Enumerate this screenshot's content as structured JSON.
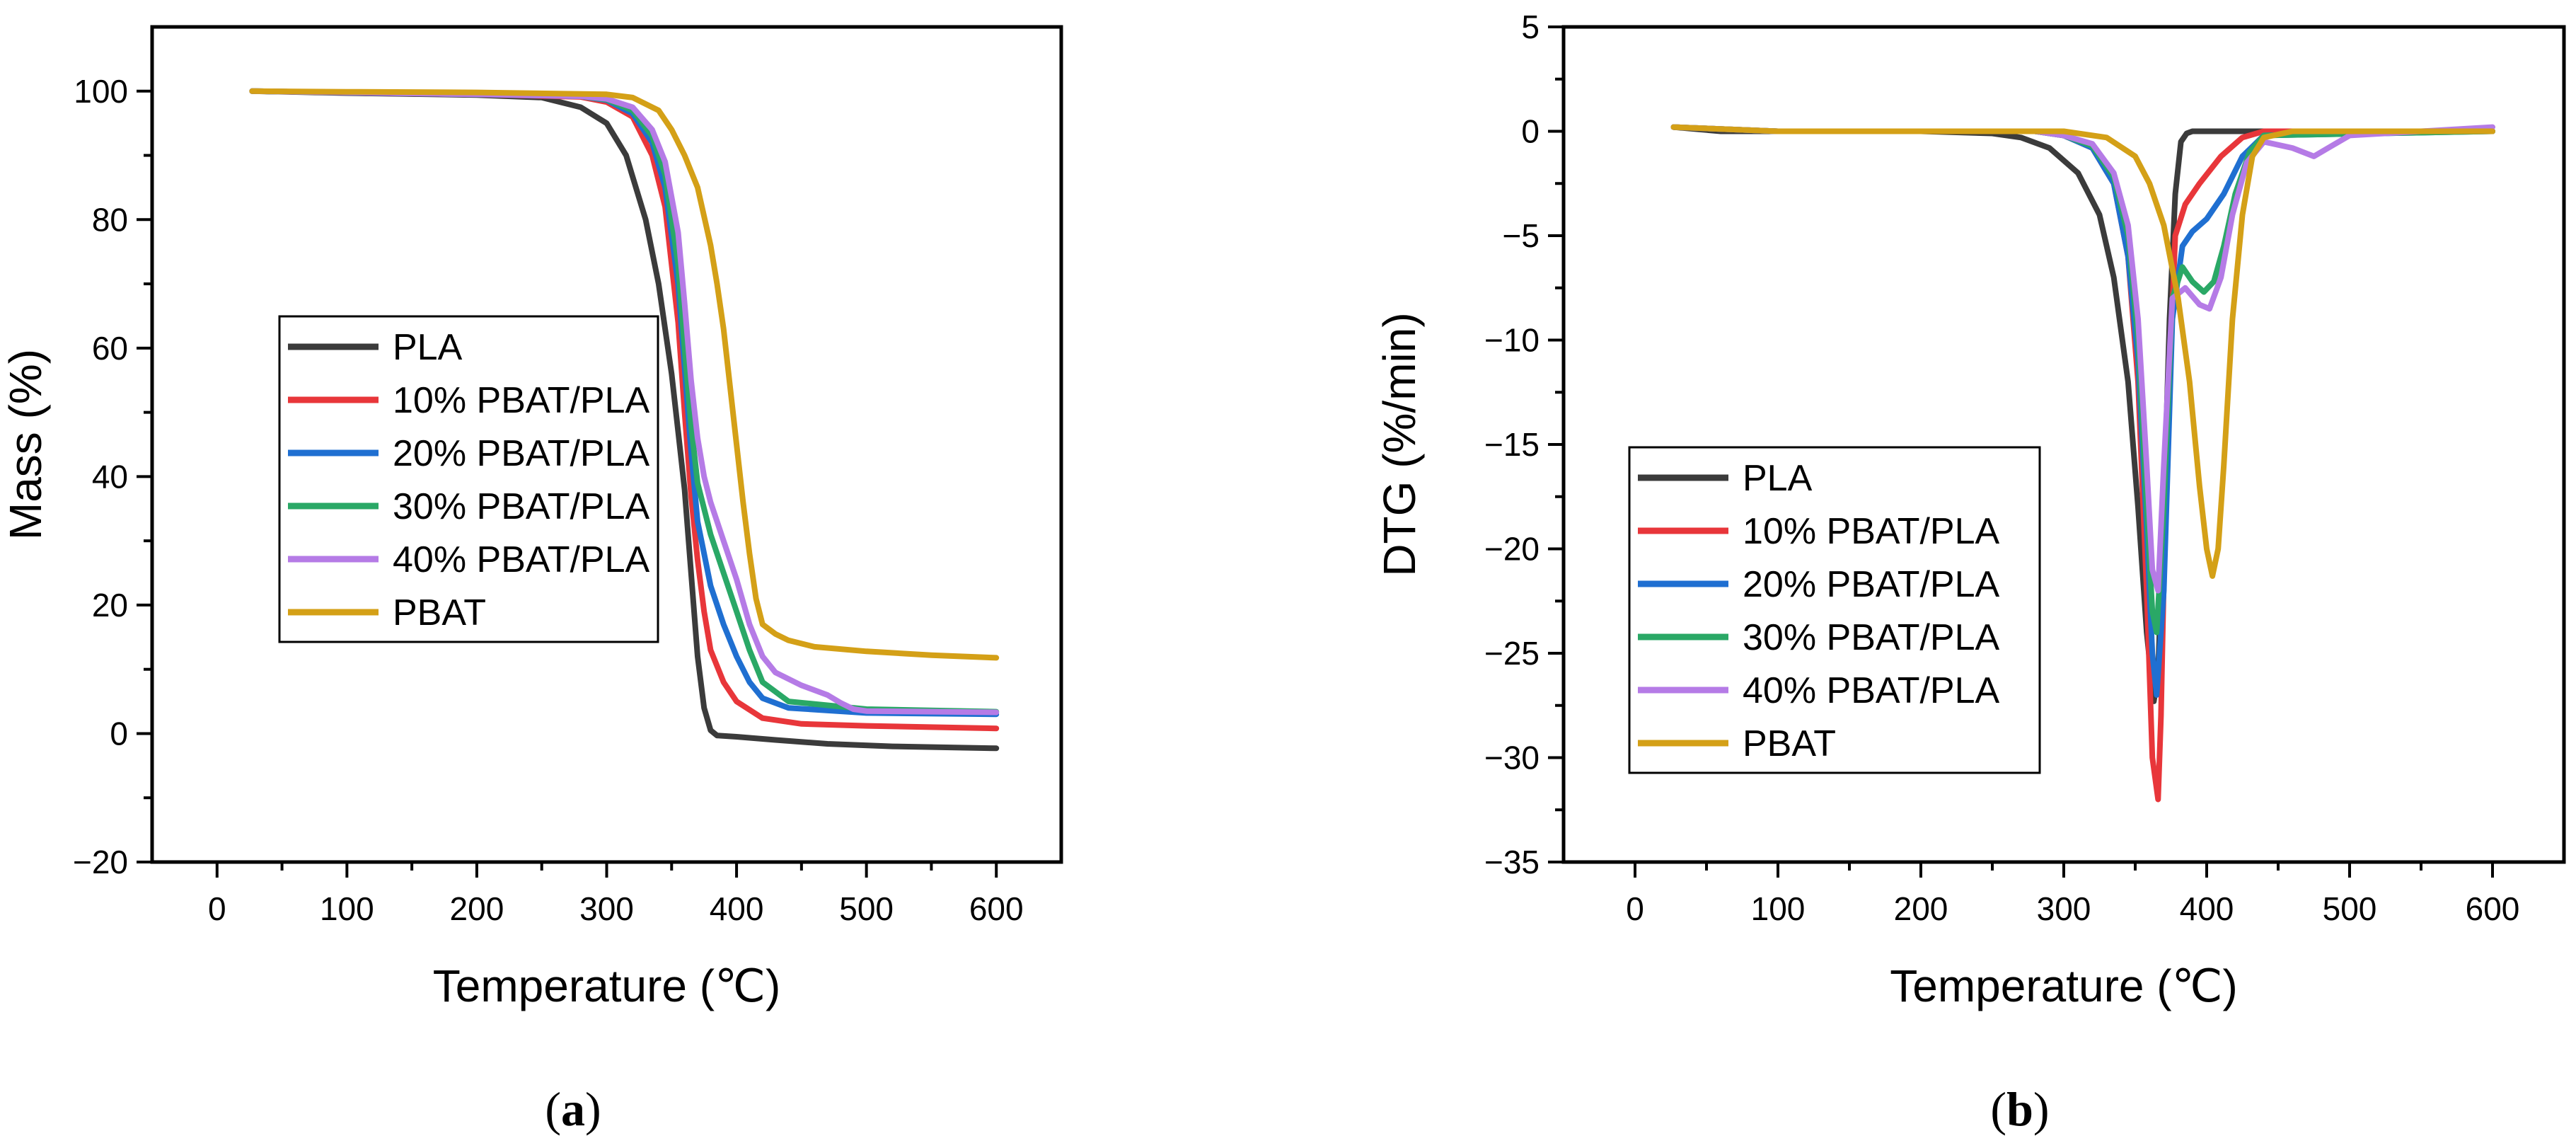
{
  "chart_data": [
    {
      "type": "line",
      "panel_label": "a",
      "xlabel": "Temperature (℃)",
      "ylabel": "Mass (%)",
      "xlim": [
        -50,
        650
      ],
      "ylim": [
        -20,
        110
      ],
      "xticks": [
        0,
        100,
        200,
        300,
        400,
        500,
        600
      ],
      "yticks": [
        -20,
        0,
        20,
        40,
        60,
        80,
        100
      ],
      "grid": false,
      "legend_position": "center-left",
      "series": [
        {
          "name": "PLA",
          "color": "#3b3b3b",
          "x": [
            27,
            100,
            200,
            250,
            280,
            300,
            315,
            330,
            340,
            350,
            355,
            360,
            365,
            370,
            375,
            380,
            385,
            400,
            430,
            470,
            520,
            600
          ],
          "y": [
            100,
            99.7,
            99.4,
            99,
            97.5,
            95,
            90,
            80,
            70,
            56,
            47,
            38,
            25,
            12,
            4,
            0.5,
            -0.3,
            -0.5,
            -1,
            -1.6,
            -2,
            -2.3
          ]
        },
        {
          "name": "10% PBAT/PLA",
          "color": "#e8363a",
          "x": [
            27,
            100,
            200,
            280,
            300,
            320,
            335,
            345,
            355,
            360,
            365,
            370,
            375,
            380,
            390,
            400,
            420,
            450,
            500,
            600
          ],
          "y": [
            100,
            99.8,
            99.5,
            99.1,
            98.3,
            96,
            90,
            82,
            64,
            50,
            37,
            27,
            19,
            13,
            8,
            5,
            2.4,
            1.5,
            1.2,
            0.8
          ]
        },
        {
          "name": "20% PBAT/PLA",
          "color": "#1f6fd1",
          "x": [
            27,
            100,
            200,
            280,
            300,
            320,
            335,
            345,
            355,
            360,
            365,
            370,
            380,
            390,
            400,
            410,
            420,
            440,
            500,
            600
          ],
          "y": [
            100,
            99.8,
            99.5,
            99.2,
            98.6,
            96.5,
            92,
            85,
            70,
            57,
            44,
            33,
            23,
            17,
            12,
            8,
            5.5,
            4,
            3.2,
            3
          ]
        },
        {
          "name": "30% PBAT/PLA",
          "color": "#2aa866",
          "x": [
            27,
            100,
            200,
            280,
            300,
            320,
            335,
            345,
            355,
            360,
            365,
            370,
            380,
            390,
            400,
            410,
            420,
            440,
            500,
            600
          ],
          "y": [
            100,
            99.8,
            99.5,
            99.2,
            98.7,
            97,
            93,
            87,
            73,
            60,
            48,
            39,
            31,
            25,
            19,
            13,
            8,
            5,
            3.8,
            3.4
          ]
        },
        {
          "name": "40% PBAT/PLA",
          "color": "#b57be6",
          "x": [
            27,
            100,
            200,
            280,
            300,
            320,
            335,
            345,
            355,
            360,
            365,
            370,
            375,
            380,
            390,
            400,
            410,
            420,
            430,
            450,
            470,
            480,
            490,
            500,
            600
          ],
          "y": [
            100,
            99.8,
            99.5,
            99.2,
            98.8,
            97.5,
            94,
            89,
            78,
            67,
            55,
            46,
            40,
            36,
            30,
            24,
            17,
            12,
            9.5,
            7.5,
            6,
            4.8,
            3.8,
            3.5,
            3.3
          ]
        },
        {
          "name": "PBAT",
          "color": "#d4a017",
          "x": [
            27,
            100,
            200,
            300,
            320,
            340,
            350,
            360,
            370,
            380,
            385,
            390,
            395,
            400,
            405,
            410,
            415,
            420,
            430,
            440,
            460,
            500,
            550,
            600
          ],
          "y": [
            100,
            99.9,
            99.8,
            99.5,
            99,
            97,
            94,
            90,
            85,
            76,
            70,
            63,
            54,
            45,
            36,
            28,
            21,
            17,
            15.5,
            14.5,
            13.5,
            12.8,
            12.2,
            11.8
          ]
        }
      ]
    },
    {
      "type": "line",
      "panel_label": "b",
      "xlabel": "Temperature (℃)",
      "ylabel": "DTG (%/min)",
      "xlim": [
        -50,
        650
      ],
      "ylim": [
        -35,
        5
      ],
      "xticks": [
        0,
        100,
        200,
        300,
        400,
        500,
        600
      ],
      "yticks": [
        -35,
        -30,
        -25,
        -20,
        -15,
        -10,
        -5,
        0,
        5
      ],
      "grid": false,
      "legend_position": "center-left",
      "series": [
        {
          "name": "PLA",
          "color": "#3b3b3b",
          "x": [
            27,
            60,
            100,
            200,
            250,
            270,
            290,
            310,
            325,
            335,
            345,
            352,
            358,
            363,
            366,
            370,
            374,
            378,
            382,
            386,
            390,
            420,
            600
          ],
          "y": [
            0.2,
            0,
            0,
            0,
            -0.1,
            -0.3,
            -0.8,
            -2,
            -4,
            -7,
            -12,
            -18,
            -24,
            -27.3,
            -26,
            -18,
            -9,
            -3,
            -0.5,
            -0.1,
            0,
            0,
            0
          ]
        },
        {
          "name": "10% PBAT/PLA",
          "color": "#e8363a",
          "x": [
            27,
            100,
            200,
            280,
            300,
            320,
            335,
            345,
            352,
            358,
            362,
            366,
            368,
            372,
            378,
            385,
            395,
            410,
            425,
            440,
            600
          ],
          "y": [
            0.2,
            0,
            0,
            0,
            -0.2,
            -0.8,
            -2.5,
            -6,
            -12,
            -22,
            -30,
            -32,
            -28,
            -15,
            -5,
            -3.5,
            -2.5,
            -1.2,
            -0.3,
            0,
            0
          ]
        },
        {
          "name": "20% PBAT/PLA",
          "color": "#1f6fd1",
          "x": [
            27,
            100,
            200,
            280,
            300,
            320,
            335,
            345,
            352,
            358,
            362,
            365,
            370,
            376,
            383,
            390,
            400,
            412,
            425,
            440,
            600
          ],
          "y": [
            0.2,
            0,
            0,
            0,
            -0.2,
            -0.8,
            -2.5,
            -6,
            -11,
            -19,
            -25,
            -27,
            -22,
            -9,
            -5.5,
            -4.8,
            -4.2,
            -3,
            -1.2,
            -0.2,
            0
          ]
        },
        {
          "name": "30% PBAT/PLA",
          "color": "#2aa866",
          "x": [
            27,
            100,
            200,
            280,
            300,
            320,
            335,
            345,
            352,
            358,
            362,
            365,
            370,
            376,
            383,
            390,
            398,
            405,
            412,
            420,
            430,
            440,
            600
          ],
          "y": [
            0.2,
            0,
            0,
            0,
            -0.2,
            -0.7,
            -2.2,
            -5,
            -10,
            -18,
            -23,
            -24,
            -18,
            -8,
            -6.5,
            -7.2,
            -7.7,
            -7.2,
            -5.5,
            -3,
            -1,
            -0.2,
            0
          ]
        },
        {
          "name": "40% PBAT/PLA",
          "color": "#b57be6",
          "x": [
            27,
            100,
            200,
            280,
            300,
            320,
            335,
            345,
            352,
            358,
            362,
            366,
            370,
            376,
            385,
            395,
            402,
            410,
            418,
            428,
            440,
            460,
            475,
            485,
            500,
            550,
            600
          ],
          "y": [
            0.2,
            0,
            0,
            0,
            -0.2,
            -0.6,
            -2,
            -4.5,
            -9,
            -16,
            -21,
            -22,
            -16,
            -8,
            -7.5,
            -8.3,
            -8.5,
            -7,
            -4,
            -1.5,
            -0.5,
            -0.8,
            -1.2,
            -0.8,
            -0.2,
            0,
            0.2
          ]
        },
        {
          "name": "PBAT",
          "color": "#d4a017",
          "x": [
            27,
            100,
            200,
            300,
            330,
            350,
            360,
            370,
            380,
            388,
            395,
            400,
            404,
            408,
            412,
            418,
            425,
            432,
            440,
            460,
            600
          ],
          "y": [
            0.2,
            0,
            0,
            0,
            -0.3,
            -1.2,
            -2.5,
            -4.5,
            -8,
            -12,
            -17,
            -20,
            -21.3,
            -20,
            -16,
            -9,
            -4,
            -1.2,
            -0.3,
            0,
            0
          ]
        }
      ]
    }
  ]
}
